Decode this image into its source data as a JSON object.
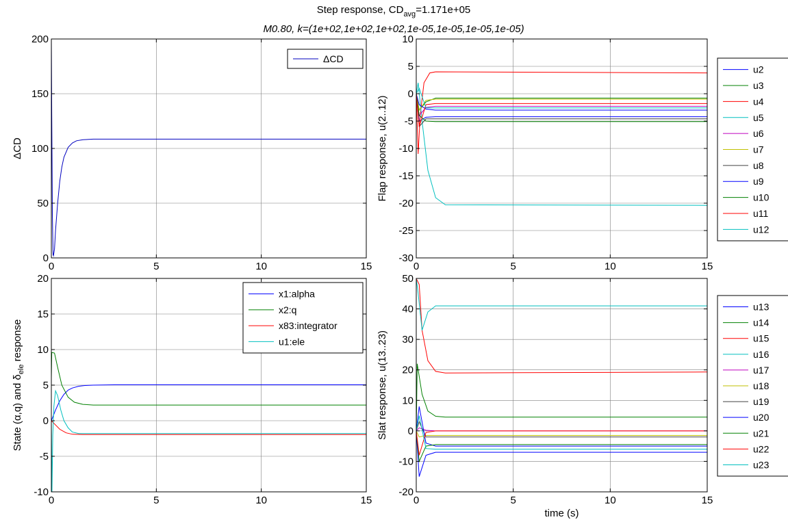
{
  "figure": {
    "title_main": "Step response, CD",
    "title_sub": "avg",
    "title_value": "=1.171e+05",
    "subtitle": "M0.80, k=(1e+02,1e+02,1e+02,1e-05,1e-05,1e-05,1e-05)"
  },
  "chart_data": [
    {
      "id": "cd",
      "type": "line",
      "title": "",
      "xlabel": "",
      "ylabel_parts": [
        "ΔCD"
      ],
      "xlim": [
        0,
        15
      ],
      "ylim": [
        0,
        200
      ],
      "xticks": [
        0,
        5,
        10,
        15
      ],
      "yticks": [
        0,
        50,
        100,
        150,
        200
      ],
      "grid": true,
      "legend_placement": "top-right",
      "series": [
        {
          "name": "ΔCD",
          "color": "#0000bf",
          "x": [
            0,
            0.02,
            0.05,
            0.08,
            0.1,
            0.15,
            0.2,
            0.3,
            0.4,
            0.5,
            0.6,
            0.8,
            1.0,
            1.2,
            1.5,
            2.0,
            3,
            5,
            10,
            15
          ],
          "y": [
            200,
            130,
            40,
            3,
            2,
            8,
            25,
            50,
            70,
            83,
            92,
            101,
            105,
            107,
            108,
            108.5,
            108.5,
            108.5,
            108.5,
            108.5
          ]
        }
      ]
    },
    {
      "id": "flap",
      "type": "line",
      "title": "",
      "xlabel": "",
      "ylabel_parts": [
        "Flap response, u(2..12)"
      ],
      "xlim": [
        0,
        15
      ],
      "ylim": [
        -30,
        10
      ],
      "xticks": [
        0,
        5,
        10,
        15
      ],
      "yticks": [
        -30,
        -25,
        -20,
        -15,
        -10,
        -5,
        0,
        5,
        10
      ],
      "grid": true,
      "legend_placement": "outside-right",
      "series": [
        {
          "name": "u2",
          "color": "#0000ff",
          "x": [
            0,
            0.15,
            0.5,
            1.0,
            1.5,
            15
          ],
          "y": [
            0,
            -5,
            -4.3,
            -4.2,
            -4.2,
            -4.2
          ]
        },
        {
          "name": "u3",
          "color": "#008000",
          "x": [
            0,
            0.15,
            0.5,
            1.0,
            1.5,
            15
          ],
          "y": [
            0,
            -3,
            -1.5,
            -0.8,
            -0.8,
            -0.8
          ]
        },
        {
          "name": "u4",
          "color": "#ff0000",
          "x": [
            0,
            0.1,
            0.2,
            0.4,
            0.7,
            1.0,
            15
          ],
          "y": [
            0,
            -11,
            -4,
            2,
            3.8,
            4,
            3.8
          ]
        },
        {
          "name": "u5",
          "color": "#00bfbf",
          "x": [
            0,
            0.1,
            0.3,
            0.6,
            1.0,
            1.5,
            15
          ],
          "y": [
            0,
            2,
            -5,
            -14,
            -19,
            -20.3,
            -20.4
          ]
        },
        {
          "name": "u6",
          "color": "#bf00bf",
          "x": [
            0,
            0.15,
            0.5,
            1.0,
            15
          ],
          "y": [
            0,
            -4,
            -2.5,
            -2.3,
            -2.3
          ]
        },
        {
          "name": "u7",
          "color": "#bfbf00",
          "x": [
            0,
            0.15,
            0.5,
            1.0,
            15
          ],
          "y": [
            0,
            -3,
            -1.2,
            -1.0,
            -1.0
          ]
        },
        {
          "name": "u8",
          "color": "#404040",
          "x": [
            0,
            0.15,
            0.5,
            1.0,
            15
          ],
          "y": [
            0,
            -6,
            -4.6,
            -4.6,
            -4.6
          ]
        },
        {
          "name": "u9",
          "color": "#0000ff",
          "x": [
            0,
            0.15,
            0.5,
            1.0,
            15
          ],
          "y": [
            0,
            -2,
            -2.8,
            -3.0,
            -3.0
          ]
        },
        {
          "name": "u10",
          "color": "#008000",
          "x": [
            0,
            0.15,
            0.5,
            1.0,
            15
          ],
          "y": [
            0,
            -4,
            -5,
            -5.1,
            -5.1
          ]
        },
        {
          "name": "u11",
          "color": "#ff0000",
          "x": [
            0,
            0.15,
            0.5,
            1.0,
            15
          ],
          "y": [
            0,
            -6,
            -2.0,
            -1.8,
            -1.8
          ]
        },
        {
          "name": "u12",
          "color": "#00bfbf",
          "x": [
            0,
            0.15,
            0.5,
            1.0,
            15
          ],
          "y": [
            0,
            1,
            -2.6,
            -2.6,
            -2.6
          ]
        }
      ]
    },
    {
      "id": "state",
      "type": "line",
      "title": "",
      "xlabel": "",
      "ylabel_parts": [
        "State (",
        "α",
        ",q) and ",
        "δ",
        "ele",
        " response"
      ],
      "xlim": [
        0,
        15
      ],
      "ylim": [
        -10,
        20
      ],
      "xticks": [
        0,
        5,
        10,
        15
      ],
      "yticks": [
        -10,
        -5,
        0,
        5,
        10,
        15,
        20
      ],
      "grid": true,
      "legend_placement": "top-right",
      "series": [
        {
          "name": "x1:alpha",
          "color": "#0000ff",
          "x": [
            0,
            0.2,
            0.4,
            0.6,
            0.8,
            1.0,
            1.3,
            1.6,
            2,
            3,
            15
          ],
          "y": [
            0,
            1.5,
            2.8,
            3.7,
            4.3,
            4.6,
            4.85,
            4.95,
            5,
            5.05,
            5.05
          ]
        },
        {
          "name": "x2:q",
          "color": "#008000",
          "x": [
            0,
            0.02,
            0.15,
            0.3,
            0.5,
            0.8,
            1.1,
            1.5,
            2,
            15
          ],
          "y": [
            6,
            9.6,
            9.5,
            7.5,
            5.0,
            3.3,
            2.6,
            2.3,
            2.2,
            2.2
          ]
        },
        {
          "name": "x83:integrator",
          "color": "#ff0000",
          "x": [
            0,
            0.2,
            0.4,
            0.7,
            1.0,
            1.5,
            15
          ],
          "y": [
            0,
            -0.6,
            -1.2,
            -1.7,
            -1.9,
            -1.95,
            -1.95
          ]
        },
        {
          "name": "u1:ele",
          "color": "#00bfbf",
          "x": [
            0,
            0.03,
            0.07,
            0.12,
            0.2,
            0.3,
            0.45,
            0.6,
            0.8,
            1.0,
            1.3,
            15
          ],
          "y": [
            0,
            -10,
            -2,
            2,
            4.2,
            3.5,
            1.5,
            0,
            -1.0,
            -1.6,
            -1.8,
            -1.8
          ]
        }
      ]
    },
    {
      "id": "slat",
      "type": "line",
      "title": "",
      "xlabel": "time (s)",
      "ylabel_parts": [
        "Slat response, u(13..23)"
      ],
      "xlim": [
        0,
        15
      ],
      "ylim": [
        -20,
        50
      ],
      "xticks": [
        0,
        5,
        10,
        15
      ],
      "yticks": [
        -20,
        -10,
        0,
        10,
        20,
        30,
        40,
        50
      ],
      "grid": true,
      "legend_placement": "outside-right",
      "series": [
        {
          "name": "u13",
          "color": "#0000ff",
          "x": [
            0,
            0.15,
            0.5,
            1.0,
            15
          ],
          "y": [
            0,
            -15,
            -8,
            -7,
            -7
          ]
        },
        {
          "name": "u14",
          "color": "#008000",
          "x": [
            0,
            0.05,
            0.3,
            0.6,
            1.0,
            1.5,
            15
          ],
          "y": [
            0,
            22,
            12,
            6.5,
            4.8,
            4.5,
            4.5
          ]
        },
        {
          "name": "u15",
          "color": "#ff0000",
          "x": [
            0,
            0.15,
            0.3,
            0.6,
            1.0,
            1.5,
            15
          ],
          "y": [
            50,
            48,
            33,
            23,
            19.5,
            19,
            19.3
          ]
        },
        {
          "name": "u16",
          "color": "#00bfbf",
          "x": [
            0,
            0.1,
            0.3,
            0.6,
            1.0,
            15
          ],
          "y": [
            50,
            45,
            33,
            39,
            41,
            41
          ]
        },
        {
          "name": "u17",
          "color": "#bf00bf",
          "x": [
            0,
            0.15,
            0.5,
            1.0,
            15
          ],
          "y": [
            0,
            1,
            0.2,
            0,
            0
          ]
        },
        {
          "name": "u18",
          "color": "#bfbf00",
          "x": [
            0,
            0.15,
            0.5,
            1.0,
            15
          ],
          "y": [
            0,
            -2,
            -1.5,
            -1.5,
            -1.5
          ]
        },
        {
          "name": "u19",
          "color": "#404040",
          "x": [
            0,
            0.15,
            0.5,
            1.0,
            15
          ],
          "y": [
            0,
            3,
            -2,
            -2,
            -2
          ]
        },
        {
          "name": "u20",
          "color": "#0000ff",
          "x": [
            0,
            0.15,
            0.5,
            1.0,
            15
          ],
          "y": [
            0,
            8,
            -4,
            -5,
            -5
          ]
        },
        {
          "name": "u21",
          "color": "#008000",
          "x": [
            0,
            0.15,
            0.5,
            1.0,
            15
          ],
          "y": [
            0,
            -10,
            -5,
            -4.5,
            -4.5
          ]
        },
        {
          "name": "u22",
          "color": "#ff0000",
          "x": [
            0,
            0.15,
            0.5,
            1.0,
            15
          ],
          "y": [
            0,
            -8,
            -0.5,
            0,
            0
          ]
        },
        {
          "name": "u23",
          "color": "#00bfbf",
          "x": [
            0,
            0.15,
            0.5,
            1.0,
            15
          ],
          "y": [
            0,
            5,
            -5.8,
            -6,
            -6
          ]
        }
      ]
    }
  ]
}
